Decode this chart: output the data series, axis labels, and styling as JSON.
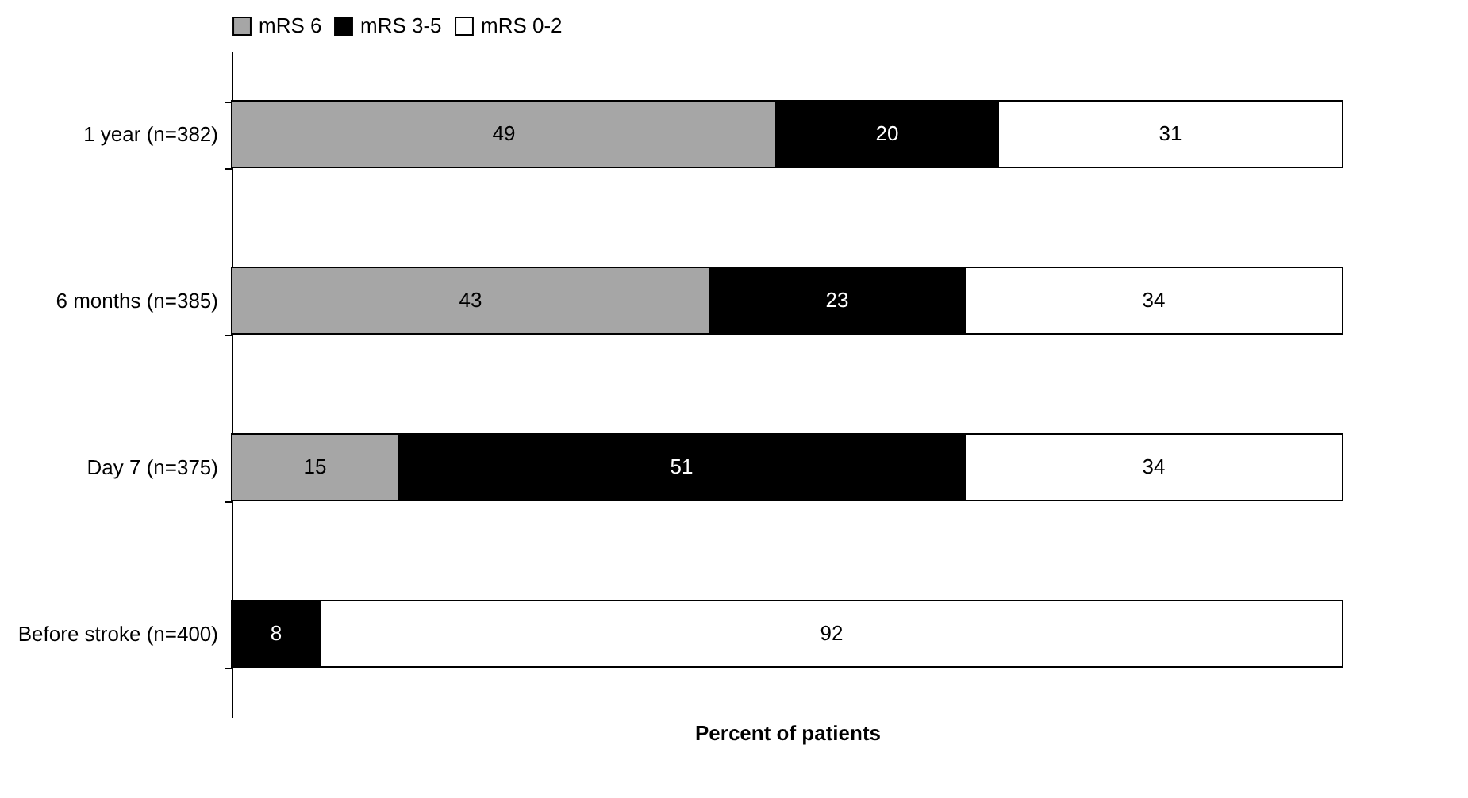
{
  "chart_data": {
    "type": "bar",
    "orientation": "horizontal",
    "stacked": true,
    "xlabel": "Percent of patients",
    "categories": [
      "1 year (n=382)",
      "6 months (n=385)",
      "Day 7 (n=375)",
      "Before stroke (n=400)"
    ],
    "series": [
      {
        "name": "mRS 6",
        "color": "#a6a6a6",
        "values": [
          49,
          43,
          15,
          null
        ]
      },
      {
        "name": "mRS 3-5",
        "color": "#000000",
        "values": [
          20,
          23,
          51,
          8
        ]
      },
      {
        "name": "mRS 0-2",
        "color": "#ffffff",
        "values": [
          31,
          34,
          34,
          92
        ]
      }
    ],
    "xlim": [
      0,
      100
    ],
    "data_labels": true,
    "legend": "top",
    "tick_labels": "y",
    "grid": false
  }
}
